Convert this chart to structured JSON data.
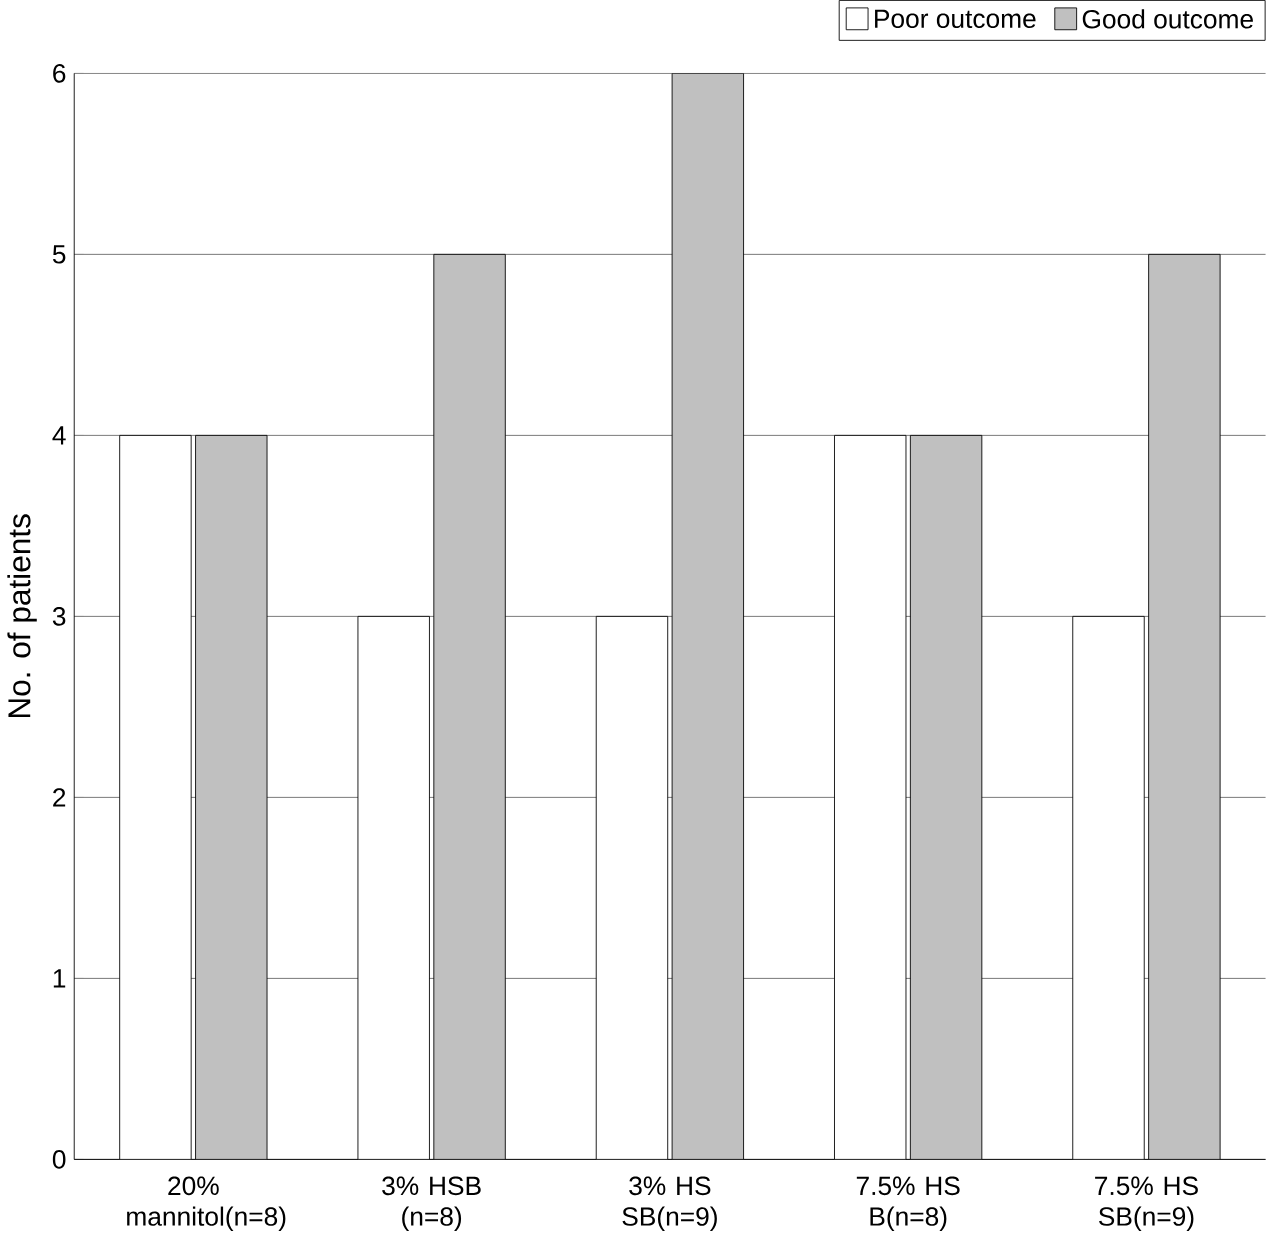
{
  "chart_data": {
    "type": "bar",
    "ylabel": "No. of patients",
    "categories": [
      "20% mannitol(n=8)",
      "3% HSB (n=8)",
      "3% HS SB(n=9)",
      "7.5% HS B(n=8)",
      "7.5% HS SB(n=9)"
    ],
    "series": [
      {
        "name": "Poor outcome",
        "color": "#ffffff",
        "values": [
          4,
          3,
          3,
          4,
          3
        ]
      },
      {
        "name": "Good outcome",
        "color": "#c0c0c0",
        "values": [
          4,
          5,
          6,
          4,
          5
        ]
      }
    ],
    "ylim": [
      0,
      6
    ],
    "yticks": [
      0,
      1,
      2,
      3,
      4,
      5,
      6
    ],
    "grid": "y",
    "legend": "top right"
  }
}
